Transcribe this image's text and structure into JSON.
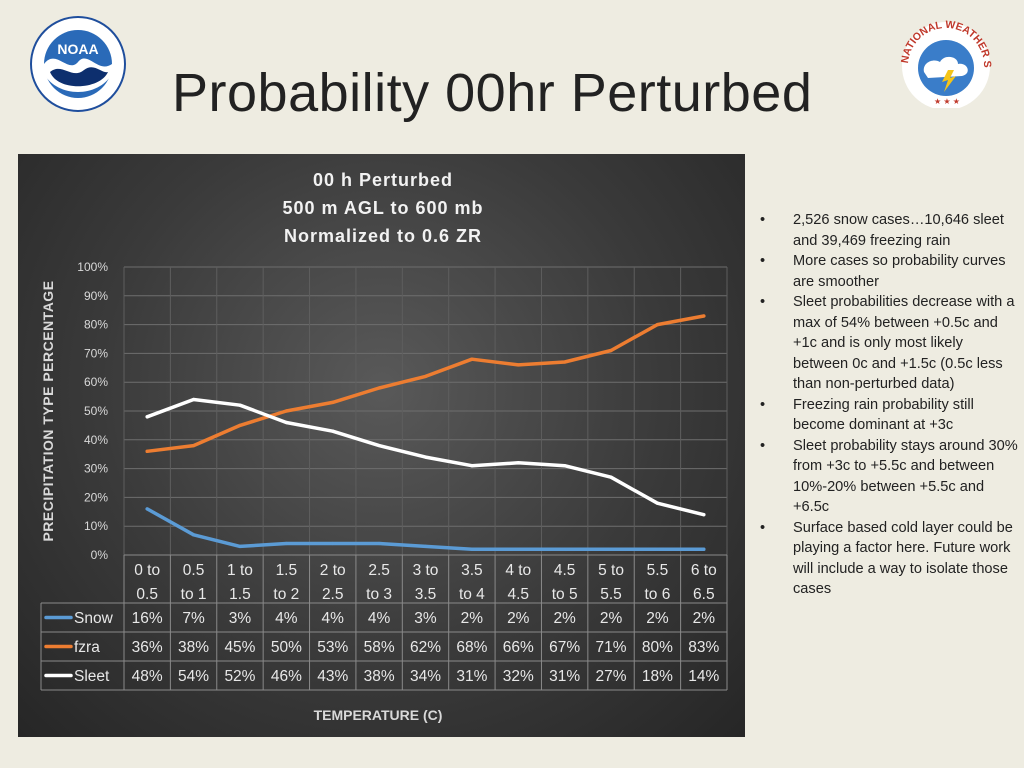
{
  "slide": {
    "title": "Probability 00hr Perturbed",
    "bullets": [
      "2,526 snow cases…10,646 sleet and 39,469 freezing rain",
      "More cases so probability curves are smoother",
      "Sleet probabilities decrease with a max of 54% between +0.5c and +1c and is only most likely between 0c and +1.5c (0.5c less than non-perturbed data)",
      "Freezing rain probability still become dominant at +3c",
      "Sleet probability stays around 30% from +3c to +5.5c and between 10%-20% between +5.5c and +6.5c",
      "Surface based cold layer could be playing a factor here. Future work will include a way to isolate those cases"
    ]
  },
  "logos": {
    "left_icon": "noaa-logo-icon",
    "right_icon": "national-weather-service-logo-icon",
    "right_text": "NATIONAL WEATHER SERVICE"
  },
  "chart_data": {
    "type": "line",
    "title_lines": [
      "00 h Perturbed",
      "500 m AGL to 600 mb",
      "Normalized to 0.6 ZR"
    ],
    "ylabel": "PRECIPITATION TYPE PERCENTAGE",
    "xlabel": "TEMPERATURE (C)",
    "ylim": [
      0,
      100
    ],
    "y_ticks": [
      "0%",
      "10%",
      "20%",
      "30%",
      "40%",
      "50%",
      "60%",
      "70%",
      "80%",
      "90%",
      "100%"
    ],
    "categories": [
      [
        "0 to",
        "0.5"
      ],
      [
        "0.5",
        "to 1"
      ],
      [
        "1 to",
        "1.5"
      ],
      [
        "1.5",
        "to 2"
      ],
      [
        "2 to",
        "2.5"
      ],
      [
        "2.5",
        "to 3"
      ],
      [
        "3 to",
        "3.5"
      ],
      [
        "3.5",
        "to 4"
      ],
      [
        "4 to",
        "4.5"
      ],
      [
        "4.5",
        "to 5"
      ],
      [
        "5 to",
        "5.5"
      ],
      [
        "5.5",
        "to 6"
      ],
      [
        "6 to",
        "6.5"
      ]
    ],
    "grid": true,
    "legend": "data-table",
    "series": [
      {
        "name": "Snow",
        "color": "#5b9bd5",
        "values": [
          16,
          7,
          3,
          4,
          4,
          4,
          3,
          2,
          2,
          2,
          2,
          2,
          2
        ],
        "labels": [
          "16%",
          "7%",
          "3%",
          "4%",
          "4%",
          "4%",
          "3%",
          "2%",
          "2%",
          "2%",
          "2%",
          "2%",
          "2%"
        ]
      },
      {
        "name": "fzra",
        "color": "#ed7d31",
        "values": [
          36,
          38,
          45,
          50,
          53,
          58,
          62,
          68,
          66,
          67,
          71,
          80,
          83
        ],
        "labels": [
          "36%",
          "38%",
          "45%",
          "50%",
          "53%",
          "58%",
          "62%",
          "68%",
          "66%",
          "67%",
          "71%",
          "80%",
          "83%"
        ]
      },
      {
        "name": "Sleet",
        "color": "#ffffff",
        "values": [
          48,
          54,
          52,
          46,
          43,
          38,
          34,
          31,
          32,
          31,
          27,
          18,
          14
        ],
        "labels": [
          "48%",
          "54%",
          "52%",
          "46%",
          "43%",
          "38%",
          "34%",
          "31%",
          "32%",
          "31%",
          "27%",
          "18%",
          "14%"
        ]
      }
    ]
  }
}
